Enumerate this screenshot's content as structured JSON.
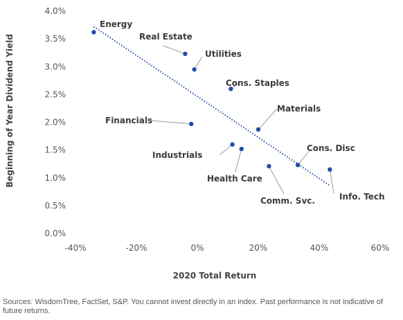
{
  "chart_data": {
    "type": "scatter",
    "xlabel": "2020 Total Return",
    "ylabel": "Beginning of Year Dividend Yield",
    "xlim": [
      -40,
      60
    ],
    "ylim": [
      0,
      4
    ],
    "x_ticks": [
      "-40%",
      "-20%",
      "0%",
      "20%",
      "40%",
      "60%"
    ],
    "y_ticks": [
      "0.0%",
      "0.5%",
      "1.0%",
      "1.5%",
      "2.0%",
      "2.5%",
      "3.0%",
      "3.5%",
      "4.0%"
    ],
    "points": [
      {
        "label": "Energy",
        "x": -34,
        "y": 3.62
      },
      {
        "label": "Real Estate",
        "x": -4,
        "y": 3.23
      },
      {
        "label": "Utilities",
        "x": -1,
        "y": 2.95
      },
      {
        "label": "Cons. Staples",
        "x": 11,
        "y": 2.6
      },
      {
        "label": "Financials",
        "x": -2,
        "y": 1.97
      },
      {
        "label": "Materials",
        "x": 20,
        "y": 1.87
      },
      {
        "label": "Industrials",
        "x": 11.5,
        "y": 1.6
      },
      {
        "label": "Health Care",
        "x": 14.5,
        "y": 1.52
      },
      {
        "label": "Cons. Disc",
        "x": 33,
        "y": 1.23
      },
      {
        "label": "Comm. Svc.",
        "x": 23.5,
        "y": 1.21
      },
      {
        "label": "Info. Tech",
        "x": 43.5,
        "y": 1.15
      }
    ],
    "trendline": {
      "style": "dotted",
      "x": [
        -34,
        43.5
      ],
      "y": [
        3.72,
        0.86
      ]
    },
    "marker_color": "#1f4ea8",
    "trendline_color": "#1f4ea8",
    "grid": false,
    "legend": "none"
  },
  "source_note": "Sources: WisdomTree, FactSet, S&P. You cannot invest directly in an index. Past performance is not indicative of future returns."
}
